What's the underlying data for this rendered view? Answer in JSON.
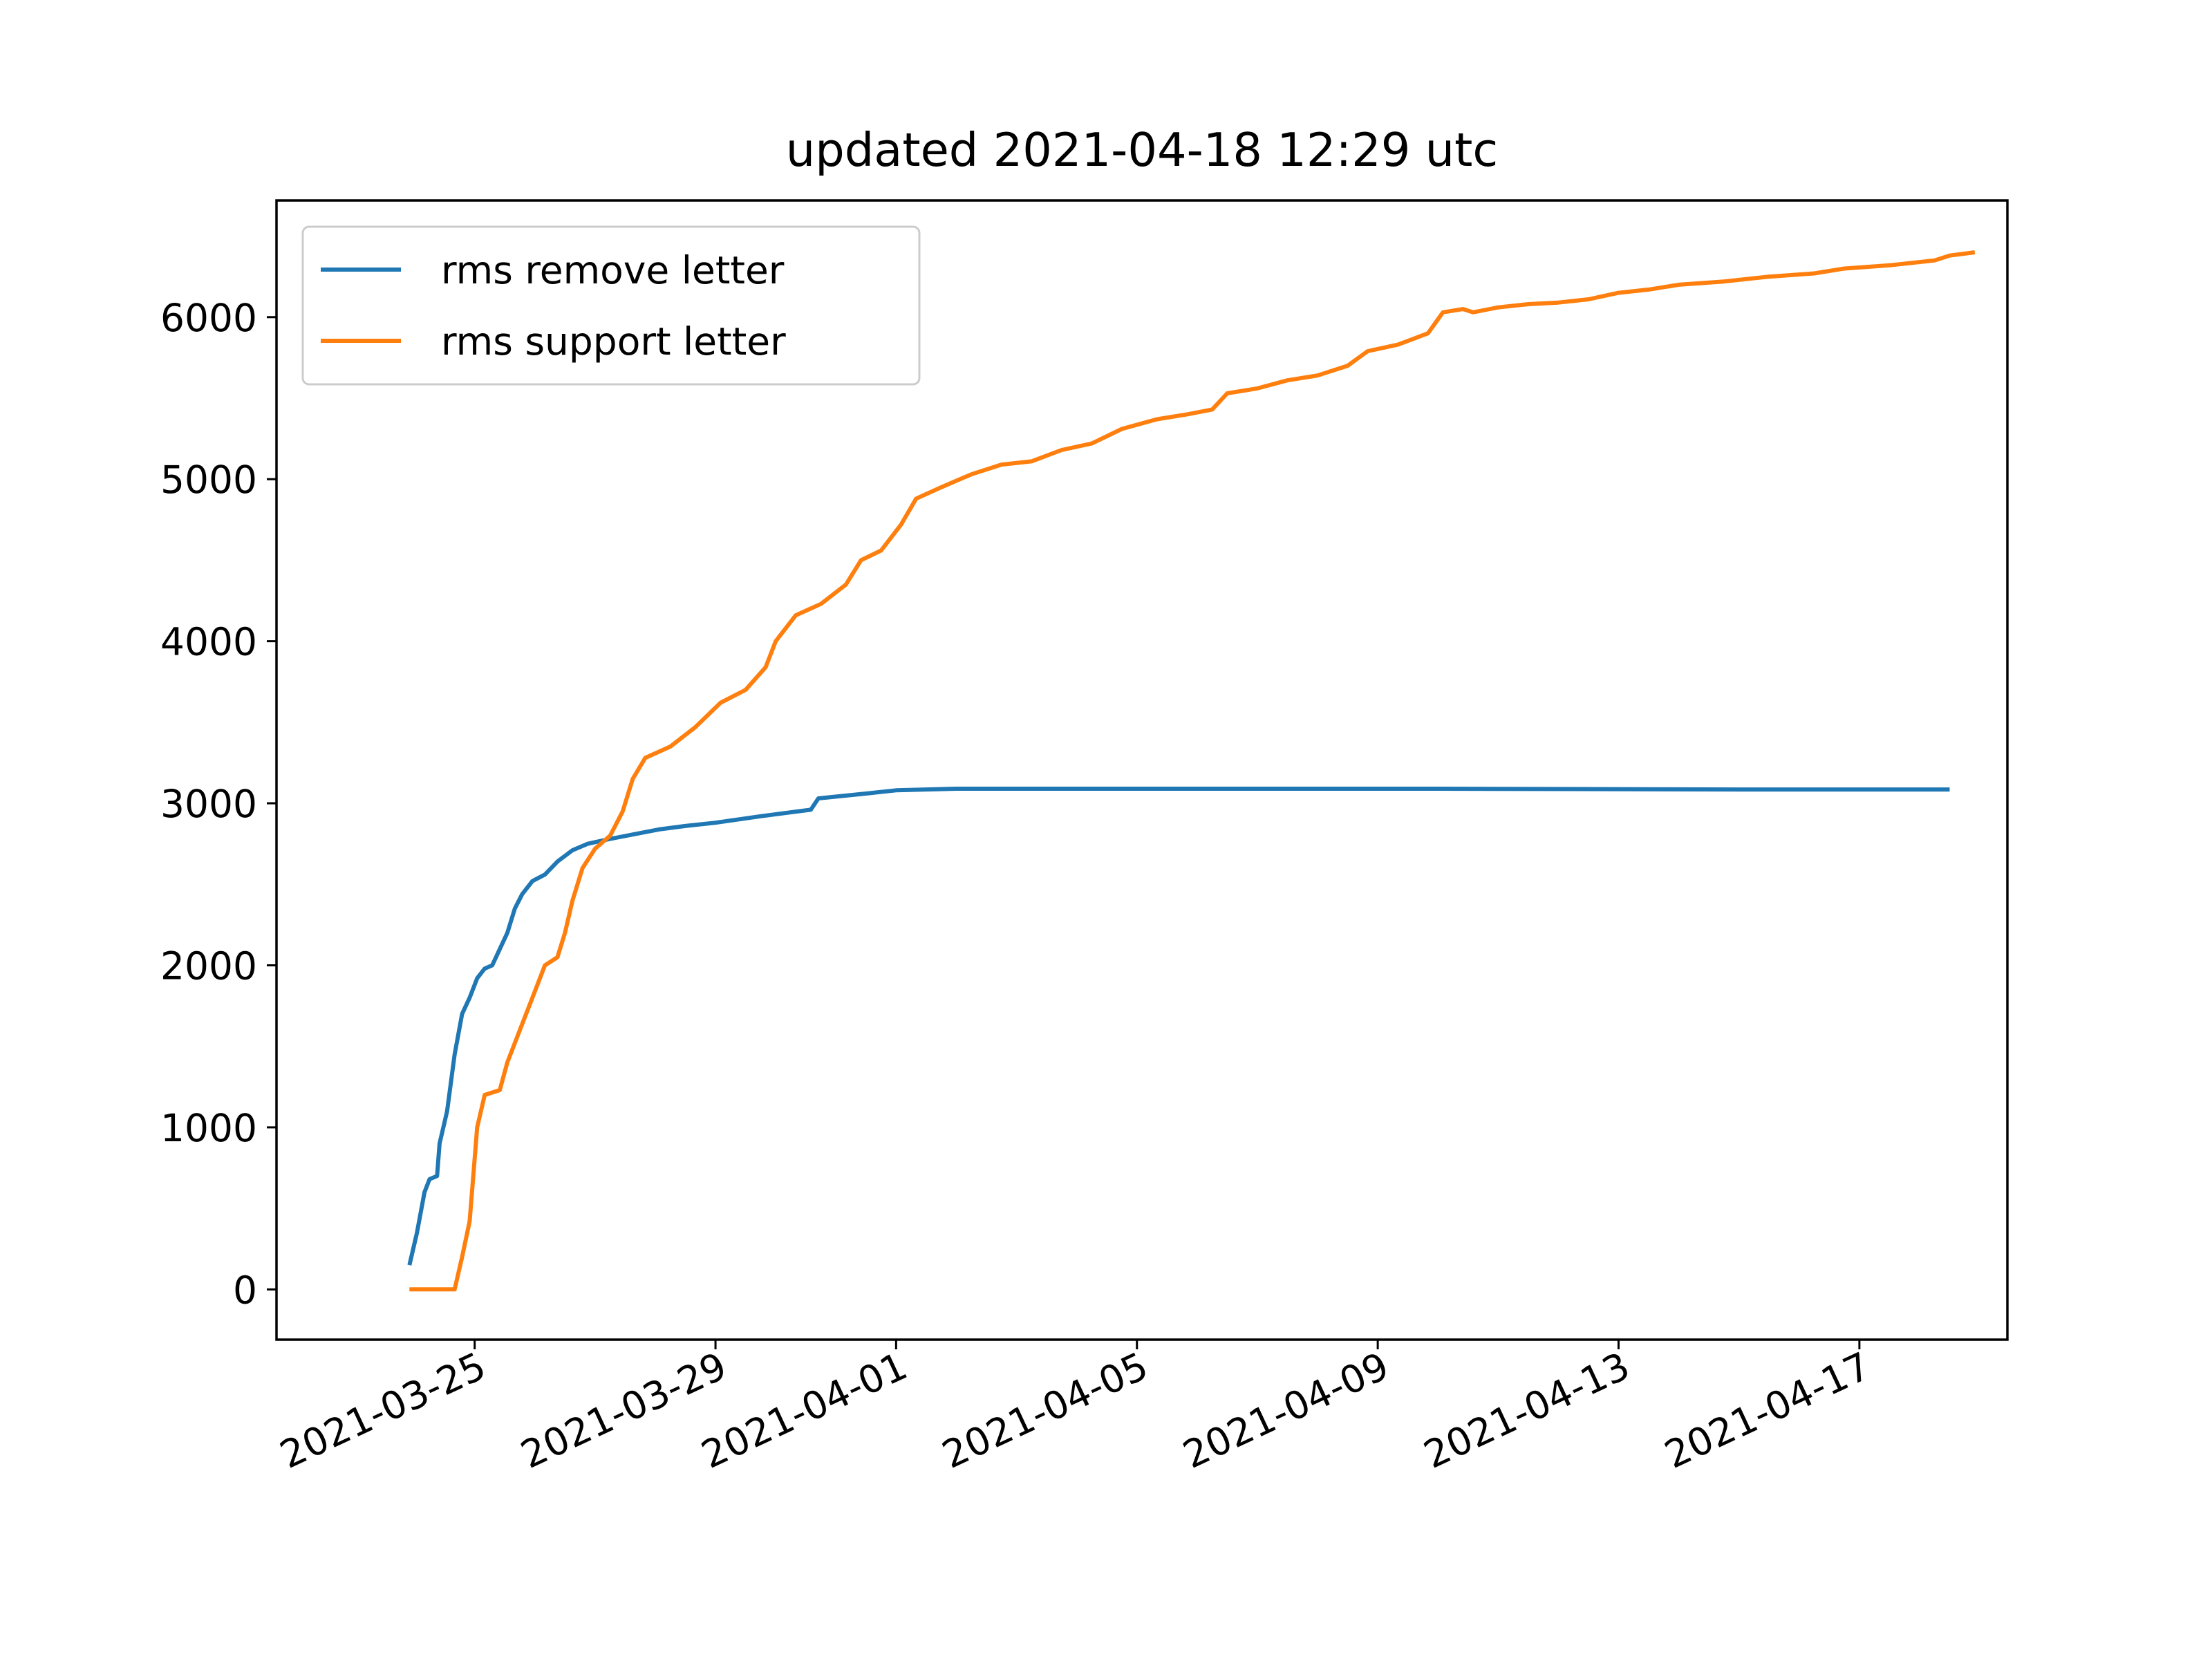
{
  "chart_data": {
    "type": "line",
    "title": "updated 2021-04-18 12:29 utc",
    "xlabel": "",
    "ylabel": "",
    "x_type": "date",
    "xlim": [
      "2021-03-21T17:00",
      "2021-04-19T11:00"
    ],
    "ylim": [
      -310,
      6720
    ],
    "x_ticks": [
      "2021-03-25",
      "2021-03-29",
      "2021-04-01",
      "2021-04-05",
      "2021-04-09",
      "2021-04-13",
      "2021-04-17"
    ],
    "y_ticks": [
      0,
      1000,
      2000,
      3000,
      4000,
      5000,
      6000
    ],
    "grid": false,
    "legend": {
      "placement": "upper-left",
      "entries": [
        "rms remove letter",
        "rms support letter"
      ]
    },
    "series": [
      {
        "name": "rms remove letter",
        "color": "#1f77b4",
        "points": [
          [
            "2021-03-23T22:00",
            150
          ],
          [
            "2021-03-24T01:00",
            350
          ],
          [
            "2021-03-24T04:00",
            600
          ],
          [
            "2021-03-24T06:00",
            680
          ],
          [
            "2021-03-24T09:00",
            700
          ],
          [
            "2021-03-24T10:00",
            900
          ],
          [
            "2021-03-24T13:00",
            1100
          ],
          [
            "2021-03-24T16:00",
            1450
          ],
          [
            "2021-03-24T19:00",
            1700
          ],
          [
            "2021-03-24T22:00",
            1800
          ],
          [
            "2021-03-25T01:00",
            1920
          ],
          [
            "2021-03-25T04:00",
            1980
          ],
          [
            "2021-03-25T07:00",
            2000
          ],
          [
            "2021-03-25T10:00",
            2100
          ],
          [
            "2021-03-25T13:00",
            2200
          ],
          [
            "2021-03-25T16:00",
            2350
          ],
          [
            "2021-03-25T19:00",
            2440
          ],
          [
            "2021-03-25T23:00",
            2520
          ],
          [
            "2021-03-26T04:00",
            2560
          ],
          [
            "2021-03-26T09:00",
            2640
          ],
          [
            "2021-03-26T15:00",
            2710
          ],
          [
            "2021-03-26T21:00",
            2750
          ],
          [
            "2021-03-27T06:00",
            2780
          ],
          [
            "2021-03-27T16:00",
            2810
          ],
          [
            "2021-03-28T02:00",
            2840
          ],
          [
            "2021-03-28T12:00",
            2860
          ],
          [
            "2021-03-29T00:00",
            2880
          ],
          [
            "2021-03-29T18:00",
            2920
          ],
          [
            "2021-03-30T14:00",
            2960
          ],
          [
            "2021-03-30T17:00",
            3030
          ],
          [
            "2021-03-31T12:00",
            3060
          ],
          [
            "2021-04-01T00:00",
            3080
          ],
          [
            "2021-04-02T00:00",
            3090
          ],
          [
            "2021-04-05T00:00",
            3090
          ],
          [
            "2021-04-10T00:00",
            3090
          ],
          [
            "2021-04-15T00:00",
            3085
          ],
          [
            "2021-04-18T12:00",
            3085
          ]
        ]
      },
      {
        "name": "rms support letter",
        "color": "#ff7f0e",
        "points": [
          [
            "2021-03-23T22:00",
            0
          ],
          [
            "2021-03-24T16:00",
            0
          ],
          [
            "2021-03-24T19:00",
            200
          ],
          [
            "2021-03-24T22:00",
            420
          ],
          [
            "2021-03-25T01:00",
            1000
          ],
          [
            "2021-03-25T04:00",
            1200
          ],
          [
            "2021-03-25T10:00",
            1230
          ],
          [
            "2021-03-25T13:00",
            1400
          ],
          [
            "2021-03-25T18:00",
            1600
          ],
          [
            "2021-03-25T23:00",
            1800
          ],
          [
            "2021-03-26T04:00",
            2000
          ],
          [
            "2021-03-26T09:00",
            2050
          ],
          [
            "2021-03-26T12:00",
            2200
          ],
          [
            "2021-03-26T15:00",
            2400
          ],
          [
            "2021-03-26T19:00",
            2600
          ],
          [
            "2021-03-27T00:00",
            2720
          ],
          [
            "2021-03-27T06:00",
            2800
          ],
          [
            "2021-03-27T11:00",
            2950
          ],
          [
            "2021-03-27T15:00",
            3150
          ],
          [
            "2021-03-27T20:00",
            3280
          ],
          [
            "2021-03-28T06:00",
            3350
          ],
          [
            "2021-03-28T16:00",
            3470
          ],
          [
            "2021-03-29T02:00",
            3620
          ],
          [
            "2021-03-29T12:00",
            3700
          ],
          [
            "2021-03-29T20:00",
            3840
          ],
          [
            "2021-03-30T00:00",
            4000
          ],
          [
            "2021-03-30T08:00",
            4160
          ],
          [
            "2021-03-30T18:00",
            4230
          ],
          [
            "2021-03-31T04:00",
            4350
          ],
          [
            "2021-03-31T10:00",
            4500
          ],
          [
            "2021-03-31T18:00",
            4560
          ],
          [
            "2021-04-01T02:00",
            4720
          ],
          [
            "2021-04-01T08:00",
            4880
          ],
          [
            "2021-04-01T18:00",
            4950
          ],
          [
            "2021-04-02T06:00",
            5030
          ],
          [
            "2021-04-02T18:00",
            5090
          ],
          [
            "2021-04-03T06:00",
            5110
          ],
          [
            "2021-04-03T18:00",
            5180
          ],
          [
            "2021-04-04T06:00",
            5220
          ],
          [
            "2021-04-04T18:00",
            5310
          ],
          [
            "2021-04-05T08:00",
            5370
          ],
          [
            "2021-04-05T20:00",
            5400
          ],
          [
            "2021-04-06T06:00",
            5430
          ],
          [
            "2021-04-06T12:00",
            5530
          ],
          [
            "2021-04-07T00:00",
            5560
          ],
          [
            "2021-04-07T12:00",
            5610
          ],
          [
            "2021-04-08T00:00",
            5640
          ],
          [
            "2021-04-08T12:00",
            5700
          ],
          [
            "2021-04-08T20:00",
            5790
          ],
          [
            "2021-04-09T08:00",
            5830
          ],
          [
            "2021-04-09T20:00",
            5900
          ],
          [
            "2021-04-10T02:00",
            6030
          ],
          [
            "2021-04-10T10:00",
            6050
          ],
          [
            "2021-04-10T14:00",
            6030
          ],
          [
            "2021-04-11T00:00",
            6060
          ],
          [
            "2021-04-11T12:00",
            6080
          ],
          [
            "2021-04-12T00:00",
            6090
          ],
          [
            "2021-04-12T12:00",
            6110
          ],
          [
            "2021-04-13T00:00",
            6150
          ],
          [
            "2021-04-13T12:00",
            6170
          ],
          [
            "2021-04-14T00:00",
            6200
          ],
          [
            "2021-04-14T18:00",
            6220
          ],
          [
            "2021-04-15T12:00",
            6250
          ],
          [
            "2021-04-16T06:00",
            6270
          ],
          [
            "2021-04-16T18:00",
            6300
          ],
          [
            "2021-04-17T12:00",
            6320
          ],
          [
            "2021-04-18T06:00",
            6350
          ],
          [
            "2021-04-18T12:00",
            6380
          ],
          [
            "2021-04-18T22:00",
            6400
          ]
        ]
      }
    ]
  }
}
